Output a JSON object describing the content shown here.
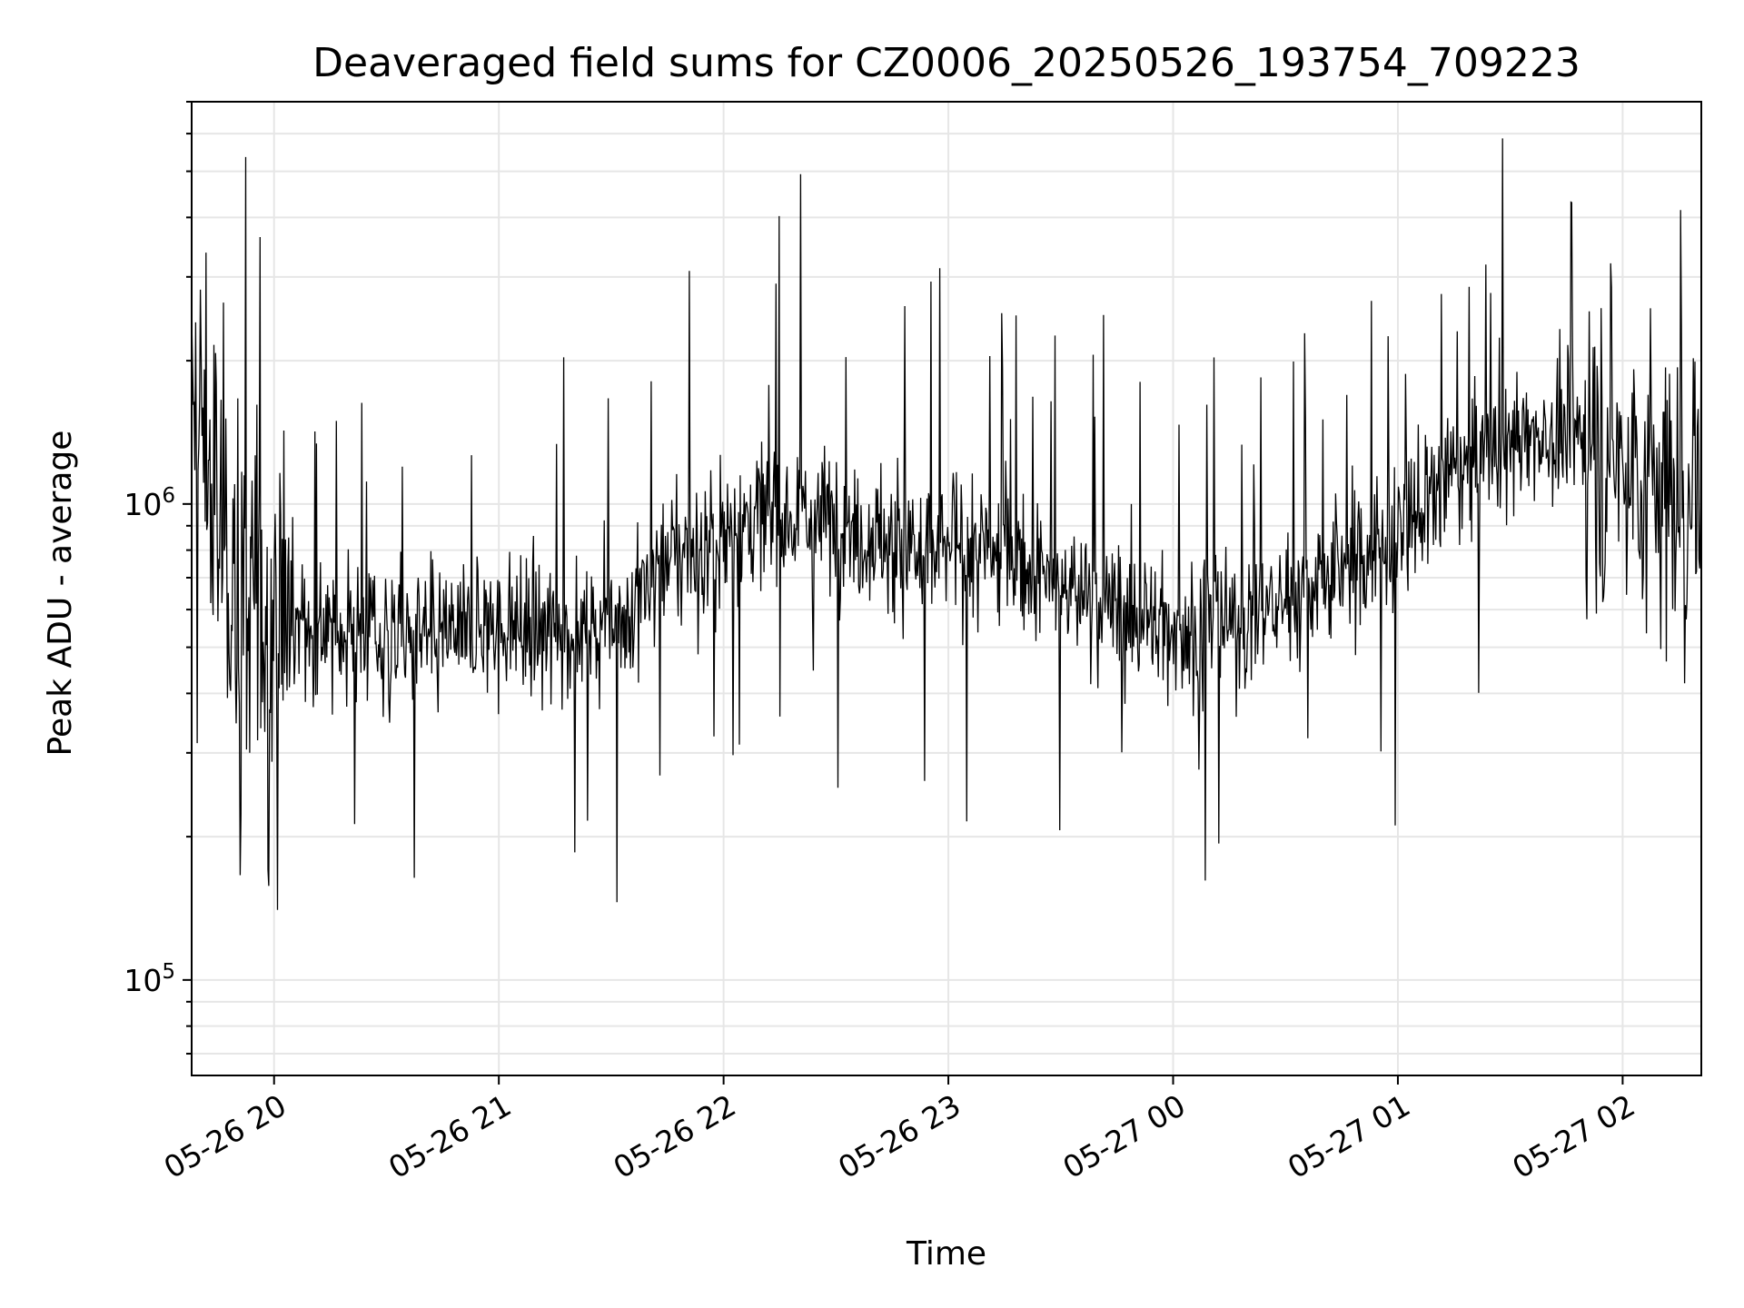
{
  "chart_data": {
    "type": "line",
    "title": "Deaveraged field sums for CZ0006_20250526_193754_709223",
    "xlabel": "Time",
    "ylabel": "Peak ADU - average",
    "yscale": "log",
    "xlim": [
      "2025-05-26 19:38",
      "2025-05-27 02:21"
    ],
    "ylim": [
      63000,
      7000000
    ],
    "xticks": [
      {
        "t": "2025-05-26 20:00",
        "label": "05-26 20"
      },
      {
        "t": "2025-05-26 21:00",
        "label": "05-26 21"
      },
      {
        "t": "2025-05-26 22:00",
        "label": "05-26 22"
      },
      {
        "t": "2025-05-26 23:00",
        "label": "05-26 23"
      },
      {
        "t": "2025-05-27 00:00",
        "label": "05-27 00"
      },
      {
        "t": "2025-05-27 01:00",
        "label": "05-27 01"
      },
      {
        "t": "2025-05-27 02:00",
        "label": "05-27 02"
      }
    ],
    "yticks": [
      {
        "value": 100000,
        "base": "10",
        "exp": "5"
      },
      {
        "value": 1000000,
        "base": "10",
        "exp": "6"
      }
    ],
    "grid": true,
    "line_color": "#000000",
    "series": [
      {
        "x": [
          "2025-05-26 19:38",
          "2025-05-26 19:41",
          "2025-05-26 19:43",
          "2025-05-26 19:45",
          "2025-05-26 19:48",
          "2025-05-26 19:50",
          "2025-05-26 19:52",
          "2025-05-26 19:55",
          "2025-05-26 19:58",
          "2025-05-26 20:05",
          "2025-05-26 20:15",
          "2025-05-26 20:25",
          "2025-05-26 20:35",
          "2025-05-26 20:45",
          "2025-05-26 20:55",
          "2025-05-26 21:05",
          "2025-05-26 21:15",
          "2025-05-26 21:25",
          "2025-05-26 21:35",
          "2025-05-26 21:45",
          "2025-05-26 21:55",
          "2025-05-26 22:05",
          "2025-05-26 22:15",
          "2025-05-26 22:25",
          "2025-05-26 22:35",
          "2025-05-26 22:45",
          "2025-05-26 22:55",
          "2025-05-26 23:05",
          "2025-05-26 23:15",
          "2025-05-26 23:25",
          "2025-05-26 23:35",
          "2025-05-26 23:45",
          "2025-05-26 23:55",
          "2025-05-27 00:05",
          "2025-05-27 00:15",
          "2025-05-27 00:25",
          "2025-05-27 00:35",
          "2025-05-27 00:45",
          "2025-05-27 00:55",
          "2025-05-27 01:05",
          "2025-05-27 01:15",
          "2025-05-27 01:25",
          "2025-05-27 01:35",
          "2025-05-27 01:45",
          "2025-05-27 01:55",
          "2025-05-27 02:05",
          "2025-05-27 02:15",
          "2025-05-27 02:21"
        ],
        "y": [
          1300000,
          1500000,
          1100000,
          900000,
          800000,
          700000,
          650000,
          600000,
          560000,
          550000,
          540000,
          520000,
          520000,
          530000,
          540000,
          550000,
          540000,
          550000,
          600000,
          780000,
          800000,
          900000,
          980000,
          950000,
          900000,
          800000,
          780000,
          820000,
          760000,
          700000,
          650000,
          600000,
          560000,
          540000,
          560000,
          600000,
          650000,
          720000,
          820000,
          950000,
          1150000,
          1300000,
          1400000,
          1400000,
          1350000,
          1150000,
          1000000,
          1100000
        ]
      }
    ]
  }
}
